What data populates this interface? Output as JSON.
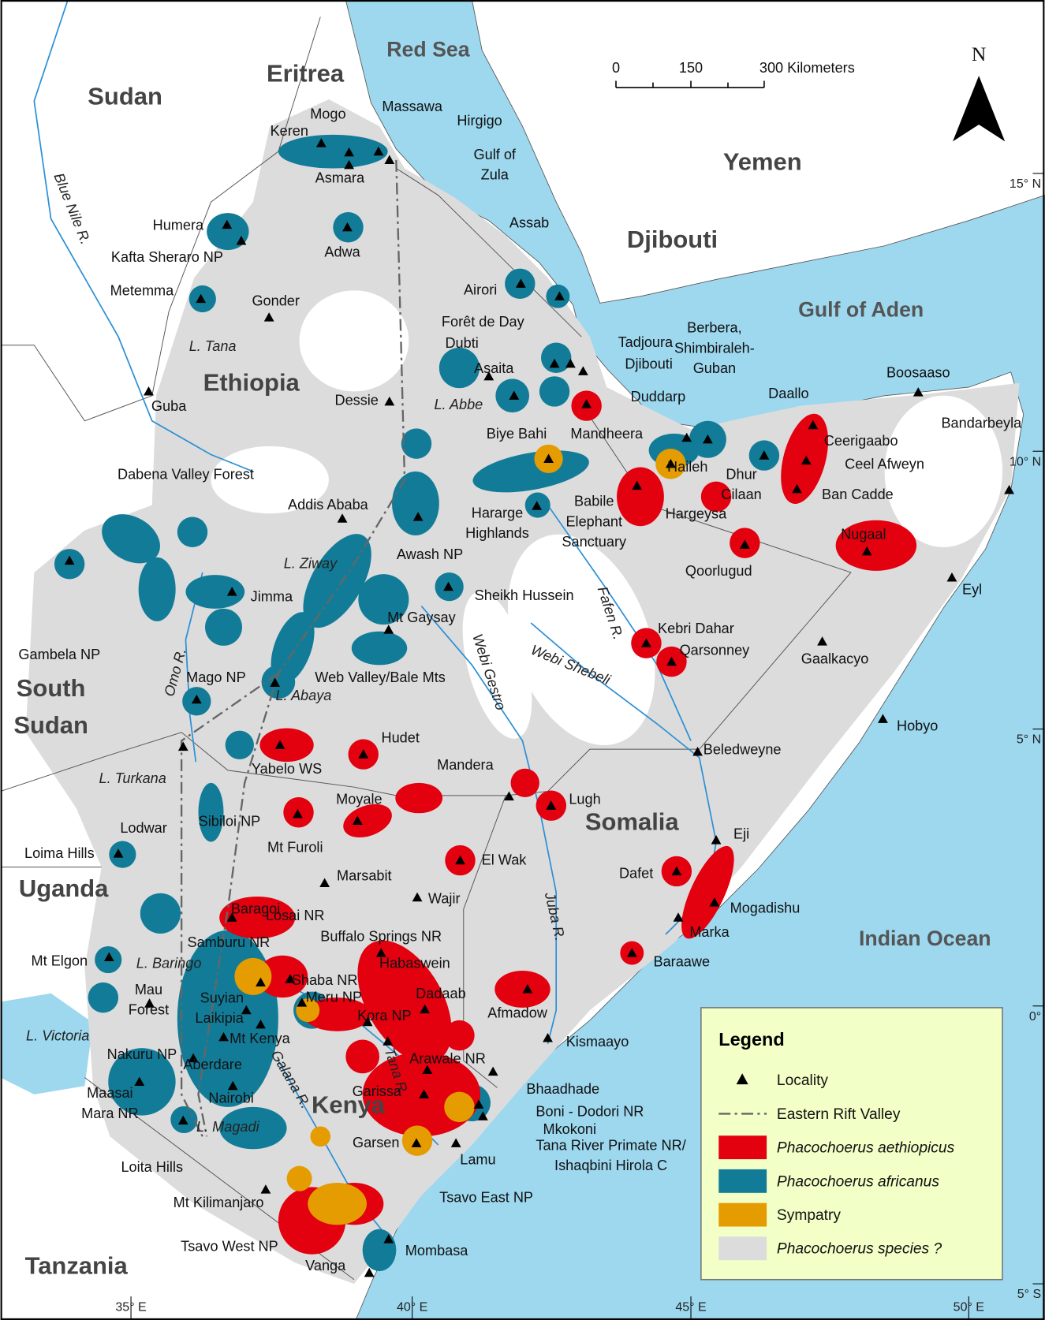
{
  "map": {
    "countries": [
      "Sudan",
      "Eritrea",
      "Ethiopia",
      "Djibouti",
      "Yemen",
      [
        "South",
        "Sudan"
      ],
      "Somalia",
      "Uganda",
      "Kenya",
      "Tanzania"
    ],
    "water_bodies": [
      "Red Sea",
      "Gulf of Aden",
      "Indian Ocean"
    ],
    "water_labels": [
      "L. Tana",
      "L. Abbe",
      "L. Ziway",
      "L. Abaya",
      "L. Turkana",
      "L. Baringo",
      "L. Victoria",
      "L. Magadi",
      "Blue Nile R.",
      "Omo R.",
      "Webi Gestro",
      "Webi Shebeli",
      "Fafen R.",
      "Juba R.",
      "Tana R.",
      "Galana R."
    ],
    "localities": [
      "Keren",
      "Mogo",
      "Asmara",
      "Massawa",
      "Hirgigo",
      [
        "Gulf of",
        "Zula"
      ],
      "Humera",
      "Kafta Sheraro NP",
      "Adwa",
      "Metemma",
      "Gonder",
      "Assab",
      "Airori",
      "Forêt de Day",
      "Dubti",
      "Asaita",
      "Tadjoura",
      "Djibouti",
      "Duddarp",
      "Dessie",
      "Guba",
      [
        "Berbera,",
        "Shimbiraleh-",
        "Guban"
      ],
      "Daallo",
      "Boosaaso",
      "Bandarbeyla",
      "Ceerigaabo",
      "Ceel Afweyn",
      "Ban Cadde",
      "Mandheera",
      "Haileh",
      [
        "Dhur",
        "Cilaan"
      ],
      "Hargeysa",
      "Biye Bahi",
      [
        "Babile",
        "Elephant",
        "Sanctuary"
      ],
      [
        "Hararge",
        "Highlands"
      ],
      "Dabena Valley Forest",
      "Addis Ababa",
      "Awash NP",
      "Nugaal",
      "Qoorlugud",
      "Eyl",
      "Jimma",
      "Gambela NP",
      "Sheikh Hussein",
      "Mt Gaysay",
      "Kebri Dahar",
      "Qarsonney",
      "Gaalkacyo",
      "Mago NP",
      "Web Valley/Bale Mts",
      "Hobyo",
      "Hudet",
      "Yabelo WS",
      "Beledweyne",
      "Mandera",
      "Moyale",
      "Lugh",
      "Sibiloi NP",
      "Lodwar",
      "Mt Furoli",
      "Eji",
      "Loima Hills",
      "El Wak",
      "Dafet",
      "Marsabit",
      "Wajir",
      "Mogadishu",
      "Baragoi",
      "Losai NR",
      "Buffalo Springs NR",
      "Marka",
      "Samburu NR",
      "Mt Elgon",
      "Habaswein",
      "Baraawe",
      "Shaba NR",
      [
        "Mau",
        "Forest"
      ],
      "Suyian",
      "Meru NP",
      "Laikipia",
      "Dadaab",
      "Afmadow",
      "Kora NP",
      "Mt Kenya",
      "Kismaayo",
      "Nakuru NP",
      "Aberdare",
      "Garissa",
      "Arawale NR",
      "Bhaadhade",
      [
        "Maasai",
        "Mara NR"
      ],
      "Boni - Dodori NR",
      "Nairobi",
      "Mkokoni",
      "Garsen",
      [
        "Tana River Primate NR/",
        "Ishaqbini Hirola C"
      ],
      "Lamu",
      "Loita Hills",
      "Tsavo East NP",
      "Mt Kilimanjaro",
      "Tsavo West NP",
      "Mombasa",
      "Vanga"
    ],
    "latitude_labels": [
      "15° N",
      "10° N",
      "5° N",
      "0°",
      "5° S"
    ],
    "longitude_labels": [
      "35° E",
      "40° E",
      "45° E",
      "50° E"
    ],
    "scale_bar": [
      "0",
      "150",
      "300 Kilometers"
    ],
    "north_arrow": "N",
    "legend": {
      "title": "Legend",
      "items": [
        {
          "label": "Locality"
        },
        {
          "label": "Eastern Rift Valley"
        },
        {
          "label": "Phacochoerus aethiopicus",
          "color": "#e3000f"
        },
        {
          "label": "Phacochoerus africanus",
          "color": "#127c98"
        },
        {
          "label": "Sympatry",
          "color": "#e59c00"
        },
        {
          "label": "Phacochoerus species ?",
          "color": "#dcdcdc"
        }
      ]
    }
  }
}
